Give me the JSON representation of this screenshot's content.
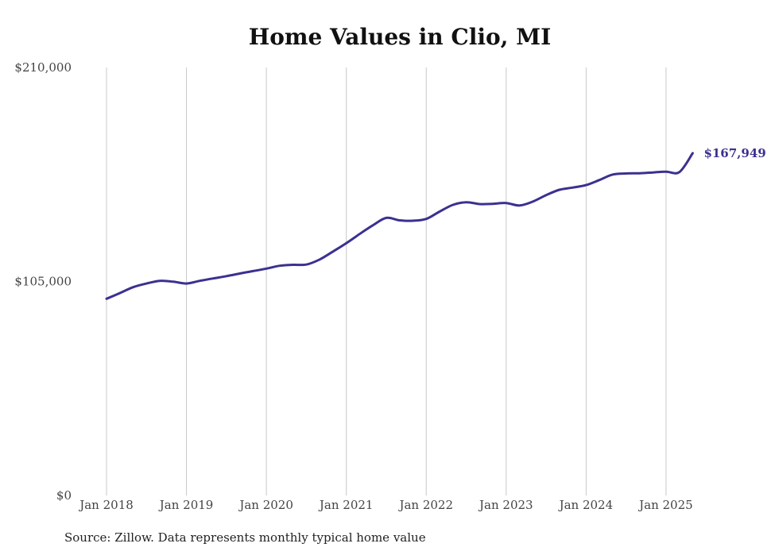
{
  "chart_data": {
    "type": "line",
    "title": "Home Values in Clio, MI",
    "xlabel": "",
    "ylabel": "",
    "x_ticks": [
      "Jan 2018",
      "Jan 2019",
      "Jan 2020",
      "Jan 2021",
      "Jan 2022",
      "Jan 2023",
      "Jan 2024",
      "Jan 2025"
    ],
    "y_ticks": [
      "$0",
      "$105,000",
      "$210,000"
    ],
    "ylim": [
      0,
      210000
    ],
    "xlim": [
      "2018-01",
      "2025-12"
    ],
    "grid": "vertical",
    "legend": "none",
    "line_color": "#3b3190",
    "end_label": "$167,949",
    "series": [
      {
        "x": [
          "2018-01",
          "2018-03",
          "2018-05",
          "2018-07",
          "2018-09",
          "2018-11",
          "2019-01",
          "2019-03",
          "2019-05",
          "2019-07",
          "2019-09",
          "2019-11",
          "2020-01",
          "2020-03",
          "2020-05",
          "2020-07",
          "2020-09",
          "2020-11",
          "2021-01",
          "2021-03",
          "2021-05",
          "2021-07",
          "2021-09",
          "2021-11",
          "2022-01",
          "2022-03",
          "2022-05",
          "2022-07",
          "2022-09",
          "2022-11",
          "2023-01",
          "2023-03",
          "2023-05",
          "2023-07",
          "2023-09",
          "2023-11",
          "2024-01",
          "2024-03",
          "2024-05",
          "2024-07",
          "2024-09",
          "2024-11",
          "2025-01",
          "2025-03",
          "2025-05"
        ],
        "values": [
          96500,
          99300,
          102200,
          104000,
          105300,
          104900,
          104000,
          105300,
          106500,
          107600,
          108900,
          110100,
          111300,
          112700,
          113200,
          113300,
          115800,
          119700,
          123800,
          128300,
          132600,
          136200,
          135000,
          134800,
          135700,
          139300,
          142600,
          143900,
          143000,
          143100,
          143500,
          142300,
          144200,
          147400,
          150000,
          151100,
          152300,
          154800,
          157500,
          158000,
          158100,
          158500,
          158900,
          158700,
          167949
        ]
      }
    ]
  },
  "source_note": "Source: Zillow. Data represents monthly typical home value"
}
